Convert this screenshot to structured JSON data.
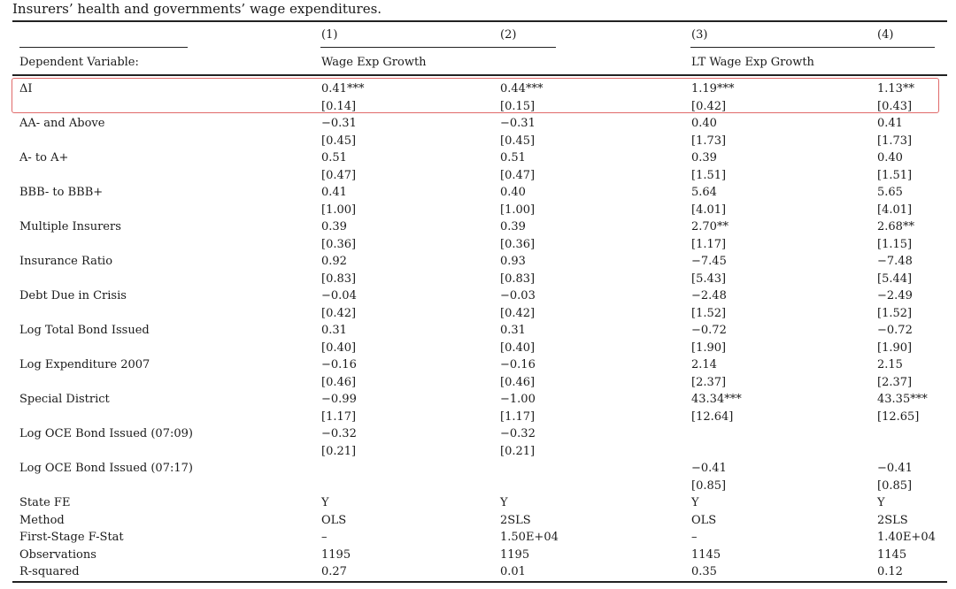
{
  "caption": "Insurers’ health and governments’ wage expenditures.",
  "columns": [
    "(1)",
    "(2)",
    "(3)",
    "(4)"
  ],
  "dependent_label": "Dependent Variable:",
  "dependent_groups": [
    "Wage Exp Growth",
    "LT Wage Exp Growth"
  ],
  "rows": [
    {
      "label": "ΔI",
      "values": [
        "0.41***",
        "0.44***",
        "1.19***",
        "1.13**"
      ],
      "se": [
        "[0.14]",
        "[0.15]",
        "[0.42]",
        "[0.43]"
      ]
    },
    {
      "label": "AA- and Above",
      "values": [
        "−0.31",
        "−0.31",
        "0.40",
        "0.41"
      ],
      "se": [
        "[0.45]",
        "[0.45]",
        "[1.73]",
        "[1.73]"
      ]
    },
    {
      "label": "A- to A+",
      "values": [
        "0.51",
        "0.51",
        "0.39",
        "0.40"
      ],
      "se": [
        "[0.47]",
        "[0.47]",
        "[1.51]",
        "[1.51]"
      ]
    },
    {
      "label": "BBB- to BBB+",
      "values": [
        "0.41",
        "0.40",
        "5.64",
        "5.65"
      ],
      "se": [
        "[1.00]",
        "[1.00]",
        "[4.01]",
        "[4.01]"
      ]
    },
    {
      "label": "Multiple Insurers",
      "values": [
        "0.39",
        "0.39",
        "2.70**",
        "2.68**"
      ],
      "se": [
        "[0.36]",
        "[0.36]",
        "[1.17]",
        "[1.15]"
      ]
    },
    {
      "label": "Insurance Ratio",
      "values": [
        "0.92",
        "0.93",
        "−7.45",
        "−7.48"
      ],
      "se": [
        "[0.83]",
        "[0.83]",
        "[5.43]",
        "[5.44]"
      ]
    },
    {
      "label": "Debt Due in Crisis",
      "values": [
        "−0.04",
        "−0.03",
        "−2.48",
        "−2.49"
      ],
      "se": [
        "[0.42]",
        "[0.42]",
        "[1.52]",
        "[1.52]"
      ]
    },
    {
      "label": "Log Total Bond Issued",
      "values": [
        "0.31",
        "0.31",
        "−0.72",
        "−0.72"
      ],
      "se": [
        "[0.40]",
        "[0.40]",
        "[1.90]",
        "[1.90]"
      ]
    },
    {
      "label": "Log Expenditure 2007",
      "values": [
        "−0.16",
        "−0.16",
        "2.14",
        "2.15"
      ],
      "se": [
        "[0.46]",
        "[0.46]",
        "[2.37]",
        "[2.37]"
      ]
    },
    {
      "label": "Special District",
      "values": [
        "−0.99",
        "−1.00",
        "43.34***",
        "43.35***"
      ],
      "se": [
        "[1.17]",
        "[1.17]",
        "[12.64]",
        "[12.65]"
      ]
    },
    {
      "label": "Log OCE Bond Issued (07:09)",
      "values": [
        "−0.32",
        "−0.32",
        "",
        ""
      ],
      "se": [
        "[0.21]",
        "[0.21]",
        "",
        ""
      ]
    },
    {
      "label": "Log OCE Bond Issued (07:17)",
      "values": [
        "",
        "",
        "−0.41",
        "−0.41"
      ],
      "se": [
        "",
        "",
        "[0.85]",
        "[0.85]"
      ]
    }
  ],
  "footer": [
    {
      "label": "State FE",
      "values": [
        "Y",
        "Y",
        "Y",
        "Y"
      ]
    },
    {
      "label": "Method",
      "values": [
        "OLS",
        "2SLS",
        "OLS",
        "2SLS"
      ]
    },
    {
      "label": "First-Stage F-Stat",
      "values": [
        "–",
        "1.50E+04",
        "–",
        "1.40E+04"
      ]
    },
    {
      "label": "Observations",
      "values": [
        "1195",
        "1195",
        "1145",
        "1145"
      ]
    },
    {
      "label": "R-squared",
      "values": [
        "0.27",
        "0.01",
        "0.35",
        "0.12"
      ]
    }
  ]
}
